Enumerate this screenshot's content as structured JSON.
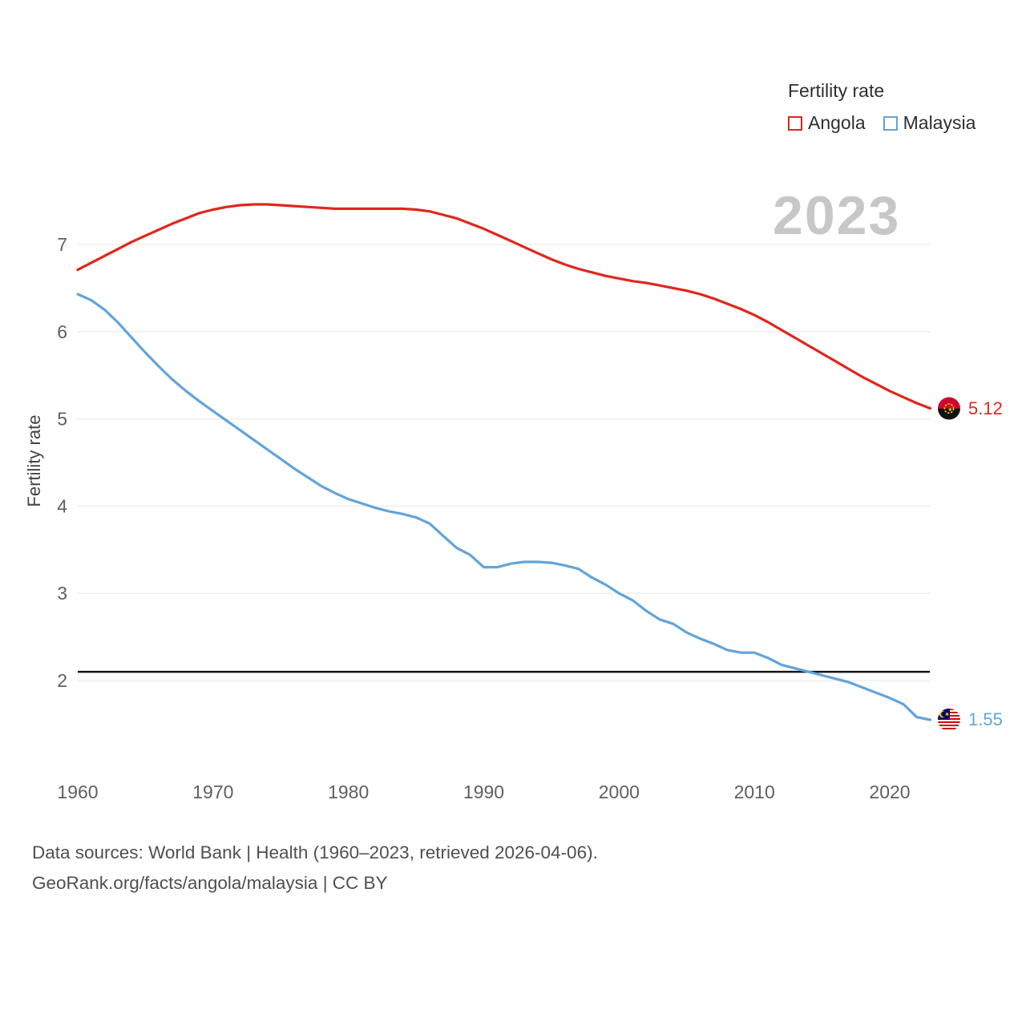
{
  "watermark": "2023",
  "legend": {
    "title": "Fertility rate",
    "items": [
      {
        "label": "Angola",
        "color": "#e1261c"
      },
      {
        "label": "Malaysia",
        "color": "#62a4da"
      }
    ]
  },
  "axes": {
    "y_label": "Fertility rate",
    "y_ticks": [
      7,
      6,
      5,
      4,
      3,
      2
    ],
    "x_ticks": [
      1960,
      1970,
      1980,
      1990,
      2000,
      2010,
      2020
    ]
  },
  "end_labels": {
    "angola": "5.12",
    "malaysia": "1.55"
  },
  "icons": {
    "angola_marker": "angola-flag-icon",
    "malaysia_marker": "malaysia-flag-icon"
  },
  "footer": {
    "line1": "Data sources: World Bank | Health (1960–2023, retrieved 2026-04-06).",
    "line2": "GeoRank.org/facts/angola/malaysia | CC BY"
  },
  "colors": {
    "angola_line": "#e1261c",
    "malaysia_line": "#62a4da",
    "reference_line": "#141414",
    "gridline": "#ececec",
    "watermark": "#c7c7c7",
    "tick_text": "#5f5f5f"
  },
  "chart_data": {
    "type": "line",
    "title": "Fertility rate",
    "xlabel": "",
    "ylabel": "Fertility rate",
    "xlim": [
      1960,
      2023
    ],
    "ylim": [
      1.3,
      7.7
    ],
    "y_ticks": [
      2,
      3,
      4,
      5,
      6,
      7
    ],
    "x_ticks": [
      1960,
      1970,
      1980,
      1990,
      2000,
      2010,
      2020
    ],
    "reference_line": 2.1,
    "grid": true,
    "legend_position": "top-right",
    "x": [
      1960,
      1961,
      1962,
      1963,
      1964,
      1965,
      1966,
      1967,
      1968,
      1969,
      1970,
      1971,
      1972,
      1973,
      1974,
      1975,
      1976,
      1977,
      1978,
      1979,
      1980,
      1981,
      1982,
      1983,
      1984,
      1985,
      1986,
      1987,
      1988,
      1989,
      1990,
      1991,
      1992,
      1993,
      1994,
      1995,
      1996,
      1997,
      1998,
      1999,
      2000,
      2001,
      2002,
      2003,
      2004,
      2005,
      2006,
      2007,
      2008,
      2009,
      2010,
      2011,
      2012,
      2013,
      2014,
      2015,
      2016,
      2017,
      2018,
      2019,
      2020,
      2021,
      2022,
      2023
    ],
    "series": [
      {
        "name": "Angola",
        "color": "#e1261c",
        "end_value": 5.12,
        "values": [
          6.71,
          6.79,
          6.87,
          6.95,
          7.03,
          7.1,
          7.17,
          7.24,
          7.3,
          7.36,
          7.4,
          7.43,
          7.45,
          7.46,
          7.46,
          7.45,
          7.44,
          7.43,
          7.42,
          7.41,
          7.41,
          7.41,
          7.41,
          7.41,
          7.41,
          7.4,
          7.38,
          7.34,
          7.3,
          7.24,
          7.18,
          7.11,
          7.04,
          6.97,
          6.9,
          6.83,
          6.77,
          6.72,
          6.68,
          6.64,
          6.61,
          6.58,
          6.56,
          6.53,
          6.5,
          6.47,
          6.43,
          6.38,
          6.32,
          6.26,
          6.19,
          6.11,
          6.02,
          5.93,
          5.84,
          5.75,
          5.66,
          5.57,
          5.48,
          5.4,
          5.32,
          5.25,
          5.18,
          5.12
        ]
      },
      {
        "name": "Malaysia",
        "color": "#62a4da",
        "end_value": 1.55,
        "values": [
          6.43,
          6.36,
          6.25,
          6.1,
          5.93,
          5.76,
          5.6,
          5.45,
          5.32,
          5.2,
          5.09,
          4.98,
          4.87,
          4.76,
          4.65,
          4.54,
          4.43,
          4.33,
          4.23,
          4.15,
          4.08,
          4.03,
          3.98,
          3.94,
          3.91,
          3.87,
          3.8,
          3.66,
          3.52,
          3.44,
          3.3,
          3.3,
          3.34,
          3.36,
          3.36,
          3.35,
          3.32,
          3.28,
          3.18,
          3.1,
          3.0,
          2.92,
          2.8,
          2.7,
          2.65,
          2.55,
          2.48,
          2.42,
          2.35,
          2.32,
          2.32,
          2.26,
          2.18,
          2.14,
          2.1,
          2.06,
          2.02,
          1.98,
          1.92,
          1.86,
          1.8,
          1.73,
          1.58,
          1.55
        ]
      }
    ]
  }
}
